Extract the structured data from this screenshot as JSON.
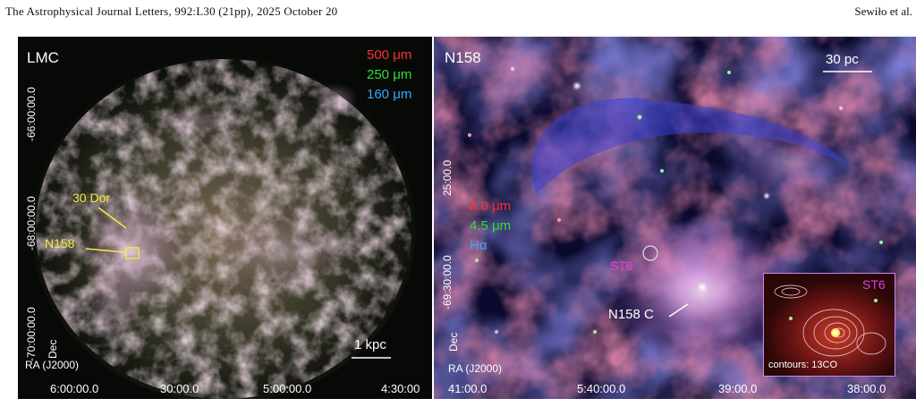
{
  "header": {
    "journal_citation": "The Astrophysical Journal Letters, 992:L30 (21pp), 2025 October 20",
    "authors": "Sewiło et al."
  },
  "left_panel": {
    "region_label": "LMC",
    "bands": [
      "500 μm",
      "250 μm",
      "160 μm"
    ],
    "band_colors": [
      "#ff3030",
      "#33dd33",
      "#33aaff"
    ],
    "annotations": {
      "dor30": "30 Dor",
      "n158": "N158"
    },
    "scale_bar": "1 kpc",
    "dec_ticks": [
      "-66:00:00.0",
      "-68:00:00.0",
      "-70:00:00.0"
    ],
    "dec_label": "Dec",
    "ra_label": "RA (J2000)",
    "ra_ticks": [
      "6:00:00.0",
      "30:00.0",
      "5:00:00.0",
      "4:30:00"
    ]
  },
  "right_panel": {
    "region_label": "N158",
    "scale_bar": "30 pc",
    "bands": [
      "8.0 μm",
      "4.5 μm",
      "Hα"
    ],
    "band_colors": [
      "#ff3030",
      "#33dd33",
      "#33aaff"
    ],
    "annotations": {
      "st6": "ST6",
      "n158c": "N158 C"
    },
    "dec_ticks": [
      "25:00.0",
      "-69:30:00.0"
    ],
    "dec_label": "Dec",
    "ra_label": "RA (J2000)",
    "ra_ticks": [
      "41:00.0",
      "5:40:00.0",
      "39:00.0",
      "38:00.0"
    ],
    "inset": {
      "title": "ST6",
      "caption": "contours: 13CO"
    }
  }
}
